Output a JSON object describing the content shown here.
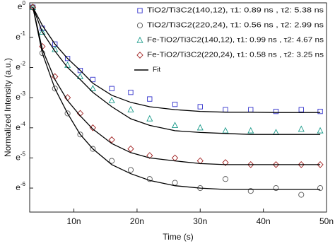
{
  "chart_data": {
    "type": "scatter",
    "x_label": "Time (s)",
    "y_label": "Normalized Intensity (a.u.)",
    "yscale": "log",
    "xlim": [
      3e-09,
      5e-08
    ],
    "ylim": [
      1.6e-07,
      1.4
    ],
    "xticks": [
      {
        "value": 1e-08,
        "label": "10n"
      },
      {
        "value": 2e-08,
        "label": "20n"
      },
      {
        "value": 3e-08,
        "label": "30n"
      },
      {
        "value": 4e-08,
        "label": "40n"
      },
      {
        "value": 5e-08,
        "label": "50n"
      }
    ],
    "yticks": [
      {
        "value": 1,
        "label": "e0"
      },
      {
        "value": 0.1,
        "label": "e-1"
      },
      {
        "value": 0.01,
        "label": "e-2"
      },
      {
        "value": 0.001,
        "label": "e-3"
      },
      {
        "value": 0.0001,
        "label": "e-4"
      },
      {
        "value": 1e-05,
        "label": "e-5"
      },
      {
        "value": 1e-06,
        "label": "e-6"
      }
    ],
    "x": [
      3.5e-09,
      5e-09,
      7e-09,
      9e-09,
      1.1e-08,
      1.3e-08,
      1.6e-08,
      1.9e-08,
      2.2e-08,
      2.6e-08,
      3e-08,
      3.4e-08,
      3.8e-08,
      4.2e-08,
      4.6e-08,
      4.9e-08
    ],
    "series": [
      {
        "name": "TiO2/Ti3C2(140,12), τ1: 0.89 ns , τ2: 5.38 ns",
        "color": "#3333cc",
        "marker": "square",
        "values": [
          1,
          0.2,
          0.06,
          0.02,
          0.008,
          0.004,
          0.002,
          0.0015,
          0.0009,
          0.0006,
          0.0005,
          0.0004,
          0.0004,
          0.00035,
          0.0004,
          0.00035
        ]
      },
      {
        "name": "TiO2/Ti3C2(220,24), τ1: 0.56 ns , τ2: 2.99 ns",
        "color": "#555555",
        "marker": "circle",
        "values": [
          1,
          0.03,
          0.002,
          0.0003,
          6e-05,
          2e-05,
          8e-06,
          4e-06,
          2e-06,
          1.5e-06,
          1e-06,
          2e-06,
          8e-07,
          1e-06,
          6e-07,
          1e-06
        ]
      },
      {
        "name": "Fe-TiO2/Ti3C2(140,12), τ1: 0.99 ns , τ2: 4.67 ns",
        "color": "#1a9a8a",
        "marker": "triangle",
        "values": [
          1,
          0.15,
          0.04,
          0.012,
          0.005,
          0.002,
          0.0008,
          0.0004,
          0.0002,
          0.00012,
          0.0001,
          8e-05,
          8e-05,
          7e-05,
          9e-05,
          8e-05
        ]
      },
      {
        "name": "Fe-TiO2/Ti3C2(220,24), τ1: 0.58 ns , τ2: 3.25 ns",
        "color": "#a02020",
        "marker": "diamond",
        "values": [
          1,
          0.05,
          0.005,
          0.001,
          0.0003,
          0.0001,
          4e-05,
          2e-05,
          1.2e-05,
          1e-05,
          8e-06,
          7e-06,
          6e-06,
          6e-06,
          6e-06,
          6e-06
        ]
      }
    ],
    "fits": {
      "name": "Fit",
      "color": "#000000",
      "curves": [
        {
          "values": [
            1,
            0.25,
            0.06,
            0.02,
            0.008,
            0.003,
            0.0012,
            0.0007,
            0.0005,
            0.0004,
            0.00035,
            0.00033,
            0.00033,
            0.00032,
            0.00032,
            0.00032
          ]
        },
        {
          "values": [
            1,
            0.03,
            0.002,
            0.0003,
            6e-05,
            2e-05,
            6e-06,
            3e-06,
            1.8e-06,
            1.2e-06,
            1e-06,
            9e-07,
            9e-07,
            9e-07,
            9e-07,
            9e-07
          ]
        },
        {
          "values": [
            1,
            0.15,
            0.035,
            0.01,
            0.004,
            0.0015,
            0.0005,
            0.0002,
            0.00012,
            8e-05,
            7e-05,
            6.5e-05,
            6e-05,
            6e-05,
            6e-05,
            6e-05
          ]
        },
        {
          "values": [
            1,
            0.04,
            0.004,
            0.0008,
            0.00025,
            9e-05,
            3e-05,
            1.5e-05,
            1e-05,
            8e-06,
            6.5e-06,
            6e-06,
            6e-06,
            6e-06,
            6e-06,
            6e-06
          ]
        }
      ]
    }
  }
}
